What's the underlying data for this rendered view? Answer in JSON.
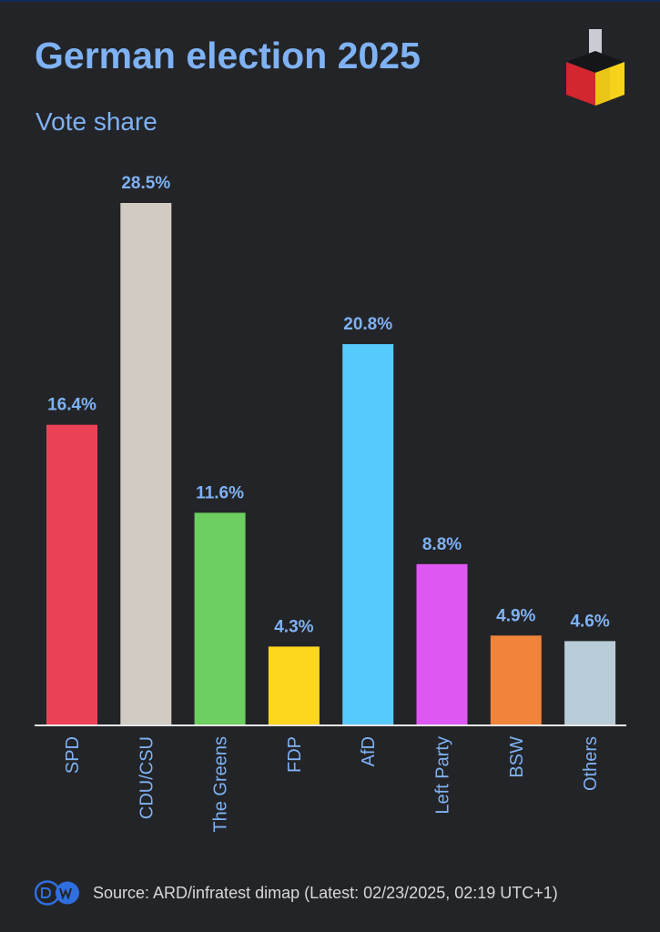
{
  "header": {
    "title": "German election 2025",
    "subtitle": "Vote share"
  },
  "footer": {
    "logo_icon": "dw-logo-icon",
    "source": "Source: ARD/infratest dimap (Latest: 02/23/2025, 02:19 UTC+1)"
  },
  "colors": {
    "title": "#7fb2f4",
    "background": "#232427",
    "axis": "#e6e6e6"
  },
  "chart_data": {
    "type": "bar",
    "title": "German election 2025",
    "subtitle": "Vote share",
    "categories": [
      "SPD",
      "CDU/CSU",
      "The Greens",
      "FDP",
      "AfD",
      "Left Party",
      "BSW",
      "Others"
    ],
    "values": [
      16.4,
      28.5,
      11.6,
      4.3,
      20.8,
      8.8,
      4.9,
      4.6
    ],
    "labels": [
      "16.4%",
      "28.5%",
      "11.6%",
      "4.3%",
      "20.8%",
      "8.8%",
      "4.9%",
      "4.6%"
    ],
    "colors": [
      "#ec4257",
      "#d1cbc4",
      "#6ccf5f",
      "#fdd61e",
      "#57cafd",
      "#df57f3",
      "#f0843b",
      "#b8ccd8"
    ],
    "ylim": [
      0,
      28.5
    ],
    "xlabel": "",
    "ylabel": "",
    "grid": false,
    "legend": "none"
  }
}
